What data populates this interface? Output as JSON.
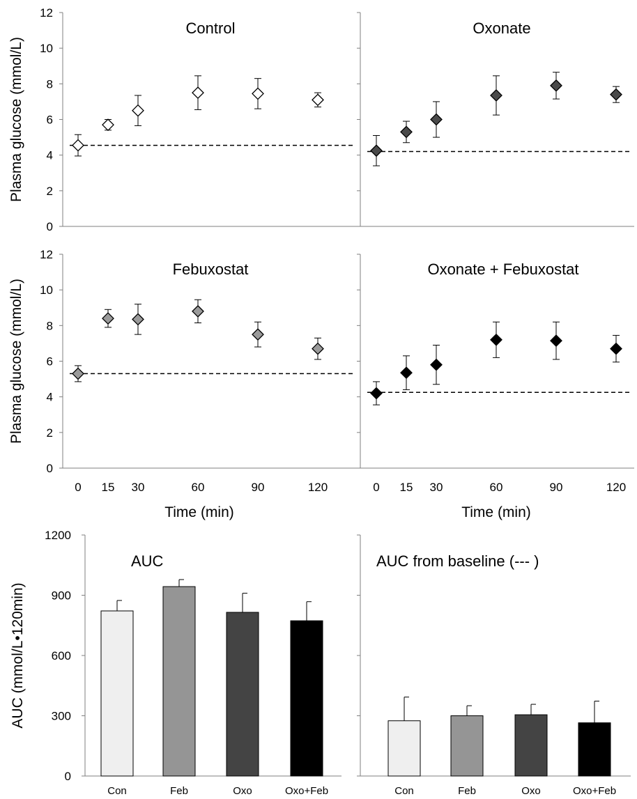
{
  "chart_data": [
    {
      "type": "scatter",
      "title": "Control",
      "ylabel": "Plasma glucose (mmol/L)",
      "xlabel": "",
      "x": [
        0,
        15,
        30,
        60,
        90,
        120
      ],
      "ylim": [
        0,
        12
      ],
      "yticks": [
        0,
        2,
        4,
        6,
        8,
        10,
        12
      ],
      "series": [
        {
          "values": [
            4.55,
            5.7,
            6.5,
            7.5,
            7.45,
            7.1
          ],
          "errors": [
            0.6,
            0.3,
            0.85,
            0.95,
            0.85,
            0.4
          ]
        }
      ],
      "baseline": 4.55,
      "marker_color": "#ffffff"
    },
    {
      "type": "scatter",
      "title": "Oxonate",
      "ylabel": "",
      "xlabel": "",
      "x": [
        0,
        15,
        30,
        60,
        90,
        120
      ],
      "ylim": [
        0,
        12
      ],
      "series": [
        {
          "values": [
            4.25,
            5.3,
            6.0,
            7.35,
            7.9,
            7.4
          ],
          "errors": [
            0.85,
            0.6,
            1.0,
            1.1,
            0.75,
            0.45
          ]
        }
      ],
      "baseline": 4.2,
      "marker_color": "#4a4a4a"
    },
    {
      "type": "scatter",
      "title": "Febuxostat",
      "ylabel": "Plasma glucose (mmol/L)",
      "xlabel": "Time (min)",
      "x": [
        0,
        15,
        30,
        60,
        90,
        120
      ],
      "ylim": [
        0,
        12
      ],
      "yticks": [
        0,
        2,
        4,
        6,
        8,
        10,
        12
      ],
      "xticks": [
        "0",
        "15",
        "30",
        "60",
        "90",
        "120"
      ],
      "series": [
        {
          "values": [
            5.3,
            8.4,
            8.35,
            8.8,
            7.5,
            6.7
          ],
          "errors": [
            0.45,
            0.5,
            0.85,
            0.65,
            0.7,
            0.6
          ]
        }
      ],
      "baseline": 5.3,
      "marker_color": "#9a9a9a"
    },
    {
      "type": "scatter",
      "title": "Oxonate + Febuxostat",
      "ylabel": "",
      "xlabel": "Time (min)",
      "x": [
        0,
        15,
        30,
        60,
        90,
        120
      ],
      "ylim": [
        0,
        12
      ],
      "xticks": [
        "0",
        "15",
        "30",
        "60",
        "90",
        "120"
      ],
      "series": [
        {
          "values": [
            4.2,
            5.35,
            5.8,
            7.2,
            7.15,
            6.7
          ],
          "errors": [
            0.65,
            0.95,
            1.1,
            1.0,
            1.05,
            0.75
          ]
        }
      ],
      "baseline": 4.25,
      "marker_color": "#000000"
    },
    {
      "type": "bar",
      "title": "AUC",
      "ylabel": "AUC (mmol/L•120min)",
      "xlabel": "",
      "categories": [
        "Con",
        "Feb",
        "Oxo",
        "Oxo+Feb"
      ],
      "values": [
        822,
        943,
        815,
        773
      ],
      "errors": [
        52,
        35,
        95,
        95
      ],
      "colors": [
        "#efefef",
        "#959595",
        "#444444",
        "#000000"
      ],
      "ylim": [
        0,
        1200
      ],
      "yticks": [
        0,
        300,
        600,
        900,
        1200
      ]
    },
    {
      "type": "bar",
      "title": "AUC from baseline (--- )",
      "ylabel": "",
      "xlabel": "",
      "categories": [
        "Con",
        "Feb",
        "Oxo",
        "Oxo+Feb"
      ],
      "values": [
        275,
        300,
        305,
        265
      ],
      "errors": [
        118,
        50,
        52,
        108
      ],
      "colors": [
        "#efefef",
        "#959595",
        "#444444",
        "#000000"
      ],
      "ylim": [
        0,
        1200
      ]
    }
  ]
}
